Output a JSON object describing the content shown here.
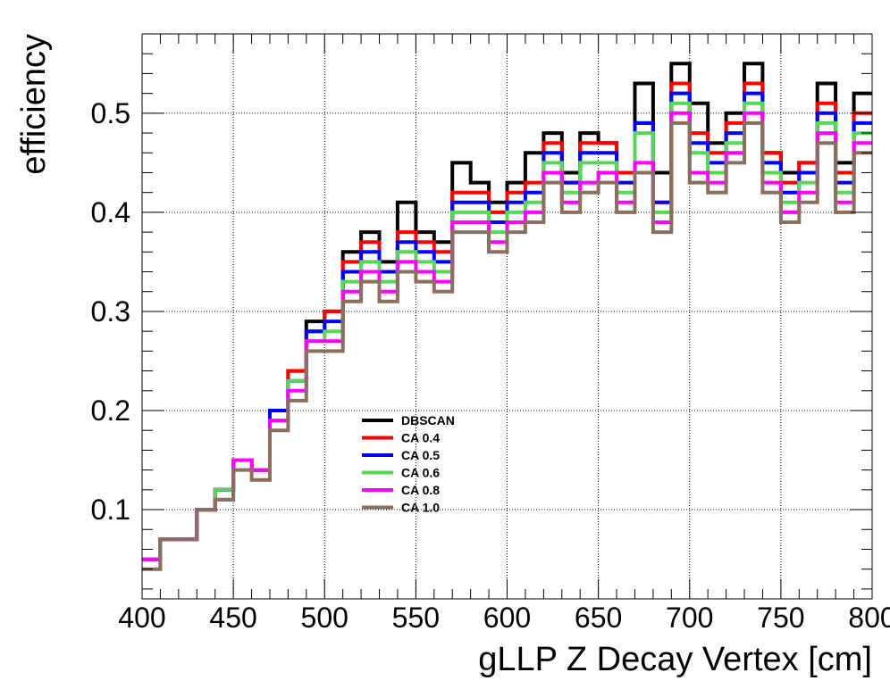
{
  "chart_data": {
    "type": "line",
    "step": true,
    "xlabel": "gLLP Z Decay Vertex [cm]",
    "ylabel": "efficiency",
    "xlim": [
      400,
      800
    ],
    "ylim": [
      0.01,
      0.58
    ],
    "grid": true,
    "legend_position": "center-left",
    "x_ticks": [
      400,
      450,
      500,
      550,
      600,
      650,
      700,
      750,
      800
    ],
    "y_ticks": [
      0.1,
      0.2,
      0.3,
      0.4,
      0.5
    ],
    "x_tick_labels": [
      "400",
      "450",
      "500",
      "550",
      "600",
      "650",
      "700",
      "750",
      "800"
    ],
    "y_tick_labels": [
      "0.1",
      "0.2",
      "0.3",
      "0.4",
      "0.5"
    ],
    "bin_edges": [
      400,
      410,
      420,
      430,
      440,
      450,
      460,
      470,
      480,
      490,
      500,
      510,
      520,
      530,
      540,
      550,
      560,
      570,
      580,
      590,
      600,
      610,
      620,
      630,
      640,
      650,
      660,
      670,
      680,
      690,
      700,
      710,
      720,
      730,
      740,
      750,
      760,
      770,
      780,
      790,
      800
    ],
    "series": [
      {
        "name": "DBSCAN",
        "color": "#000000",
        "values": [
          0.05,
          0.07,
          0.07,
          0.1,
          0.12,
          0.15,
          0.14,
          0.2,
          0.24,
          0.29,
          0.3,
          0.36,
          0.38,
          0.35,
          0.41,
          0.38,
          0.37,
          0.45,
          0.43,
          0.41,
          0.43,
          0.46,
          0.48,
          0.44,
          0.48,
          0.47,
          0.44,
          0.53,
          0.44,
          0.55,
          0.51,
          0.47,
          0.5,
          0.55,
          0.46,
          0.44,
          0.45,
          0.53,
          0.45,
          0.52
        ]
      },
      {
        "name": "CA 0.4",
        "color": "#ff0000",
        "values": [
          0.05,
          0.07,
          0.07,
          0.1,
          0.12,
          0.15,
          0.14,
          0.2,
          0.24,
          0.28,
          0.3,
          0.35,
          0.37,
          0.34,
          0.38,
          0.37,
          0.36,
          0.42,
          0.42,
          0.4,
          0.42,
          0.43,
          0.47,
          0.43,
          0.47,
          0.47,
          0.44,
          0.49,
          0.41,
          0.53,
          0.48,
          0.46,
          0.49,
          0.53,
          0.46,
          0.43,
          0.45,
          0.51,
          0.44,
          0.5
        ]
      },
      {
        "name": "CA 0.5",
        "color": "#0000ff",
        "values": [
          0.05,
          0.07,
          0.07,
          0.1,
          0.12,
          0.15,
          0.14,
          0.2,
          0.23,
          0.28,
          0.29,
          0.34,
          0.36,
          0.34,
          0.37,
          0.36,
          0.35,
          0.41,
          0.41,
          0.39,
          0.41,
          0.42,
          0.46,
          0.43,
          0.46,
          0.46,
          0.43,
          0.49,
          0.41,
          0.52,
          0.47,
          0.45,
          0.48,
          0.52,
          0.45,
          0.42,
          0.44,
          0.5,
          0.43,
          0.49
        ]
      },
      {
        "name": "CA 0.6",
        "color": "#55d855",
        "values": [
          0.05,
          0.07,
          0.07,
          0.1,
          0.12,
          0.15,
          0.14,
          0.19,
          0.23,
          0.27,
          0.28,
          0.33,
          0.35,
          0.33,
          0.36,
          0.35,
          0.34,
          0.4,
          0.4,
          0.38,
          0.4,
          0.41,
          0.45,
          0.42,
          0.45,
          0.45,
          0.42,
          0.48,
          0.4,
          0.51,
          0.46,
          0.44,
          0.47,
          0.51,
          0.44,
          0.41,
          0.43,
          0.49,
          0.42,
          0.48
        ]
      },
      {
        "name": "CA 0.8",
        "color": "#ff00ff",
        "values": [
          0.05,
          0.07,
          0.07,
          0.1,
          0.11,
          0.15,
          0.14,
          0.19,
          0.22,
          0.27,
          0.27,
          0.32,
          0.34,
          0.32,
          0.35,
          0.34,
          0.33,
          0.39,
          0.39,
          0.37,
          0.39,
          0.4,
          0.44,
          0.41,
          0.43,
          0.44,
          0.41,
          0.45,
          0.39,
          0.5,
          0.44,
          0.43,
          0.46,
          0.5,
          0.43,
          0.4,
          0.42,
          0.48,
          0.41,
          0.47
        ]
      },
      {
        "name": "CA 1.0",
        "color": "#8b6f5e",
        "values": [
          0.04,
          0.07,
          0.07,
          0.1,
          0.11,
          0.14,
          0.13,
          0.18,
          0.21,
          0.26,
          0.26,
          0.31,
          0.33,
          0.31,
          0.34,
          0.33,
          0.32,
          0.38,
          0.38,
          0.36,
          0.38,
          0.39,
          0.43,
          0.4,
          0.42,
          0.43,
          0.4,
          0.44,
          0.38,
          0.49,
          0.43,
          0.42,
          0.45,
          0.49,
          0.42,
          0.39,
          0.41,
          0.47,
          0.4,
          0.46
        ]
      }
    ]
  }
}
